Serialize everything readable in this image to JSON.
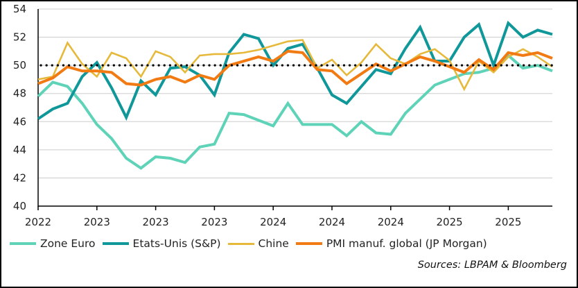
{
  "chart_data": {
    "type": "line",
    "title": "",
    "xlabel": "",
    "ylabel": "",
    "ylim": [
      40,
      54
    ],
    "yticks": [
      40,
      42,
      44,
      46,
      48,
      50,
      52,
      54
    ],
    "xtick_labels": [
      "2022",
      "2023",
      "2023",
      "2023",
      "2024",
      "2024",
      "2024",
      "2025",
      "2025"
    ],
    "grid": "horizontal",
    "reference_line": {
      "value": 50,
      "style": "dotted",
      "color": "#000000"
    },
    "legend_position": "bottom",
    "series": [
      {
        "name": "Zone Euro",
        "color": "#5ed3b8",
        "values": [
          47.8,
          48.8,
          48.5,
          47.3,
          45.8,
          44.8,
          43.4,
          42.7,
          43.5,
          43.4,
          43.1,
          44.2,
          44.4,
          46.6,
          46.5,
          46.1,
          45.7,
          47.3,
          45.8,
          45.8,
          45.8,
          45.0,
          46.0,
          45.2,
          45.1,
          46.6,
          47.6,
          48.6,
          49.0,
          49.4,
          49.5,
          49.8,
          50.7,
          49.8,
          50.0,
          49.6
        ]
      },
      {
        "name": "Etats-Unis (S&P)",
        "color": "#0f979a",
        "values": [
          46.2,
          46.9,
          47.3,
          49.2,
          50.2,
          48.4,
          46.3,
          48.9,
          47.9,
          49.8,
          49.9,
          49.3,
          47.9,
          50.9,
          52.2,
          51.9,
          50.0,
          51.2,
          51.5,
          49.8,
          47.9,
          47.3,
          48.5,
          49.7,
          49.4,
          51.2,
          52.7,
          50.3,
          50.3,
          52.0,
          52.9,
          50.0,
          53.0,
          52.0,
          52.5,
          52.2
        ]
      },
      {
        "name": "Chine",
        "color": "#e6b93b",
        "values": [
          49.0,
          49.2,
          51.6,
          50.1,
          49.2,
          50.9,
          50.5,
          49.2,
          51.0,
          50.6,
          49.5,
          50.7,
          50.8,
          50.8,
          50.9,
          51.1,
          51.4,
          51.7,
          51.8,
          49.8,
          50.4,
          49.3,
          50.2,
          51.5,
          50.5,
          50.1,
          50.8,
          51.15,
          50.35,
          48.3,
          50.3,
          49.5,
          50.6,
          51.15,
          50.6,
          49.9
        ]
      },
      {
        "name": "PMI manuf. global (JP Morgan)",
        "color": "#f27a12",
        "values": [
          48.7,
          49.1,
          49.9,
          49.6,
          49.6,
          49.5,
          48.7,
          48.6,
          49.0,
          49.2,
          48.8,
          49.3,
          49.0,
          50.0,
          50.3,
          50.6,
          50.3,
          51.0,
          50.9,
          49.7,
          49.6,
          48.7,
          49.4,
          50.1,
          49.6,
          50.1,
          50.6,
          50.3,
          49.9,
          49.5,
          50.4,
          49.7,
          50.9,
          50.7,
          50.9,
          50.5
        ]
      }
    ]
  },
  "source": "Sources: LBPAM & Bloomberg"
}
